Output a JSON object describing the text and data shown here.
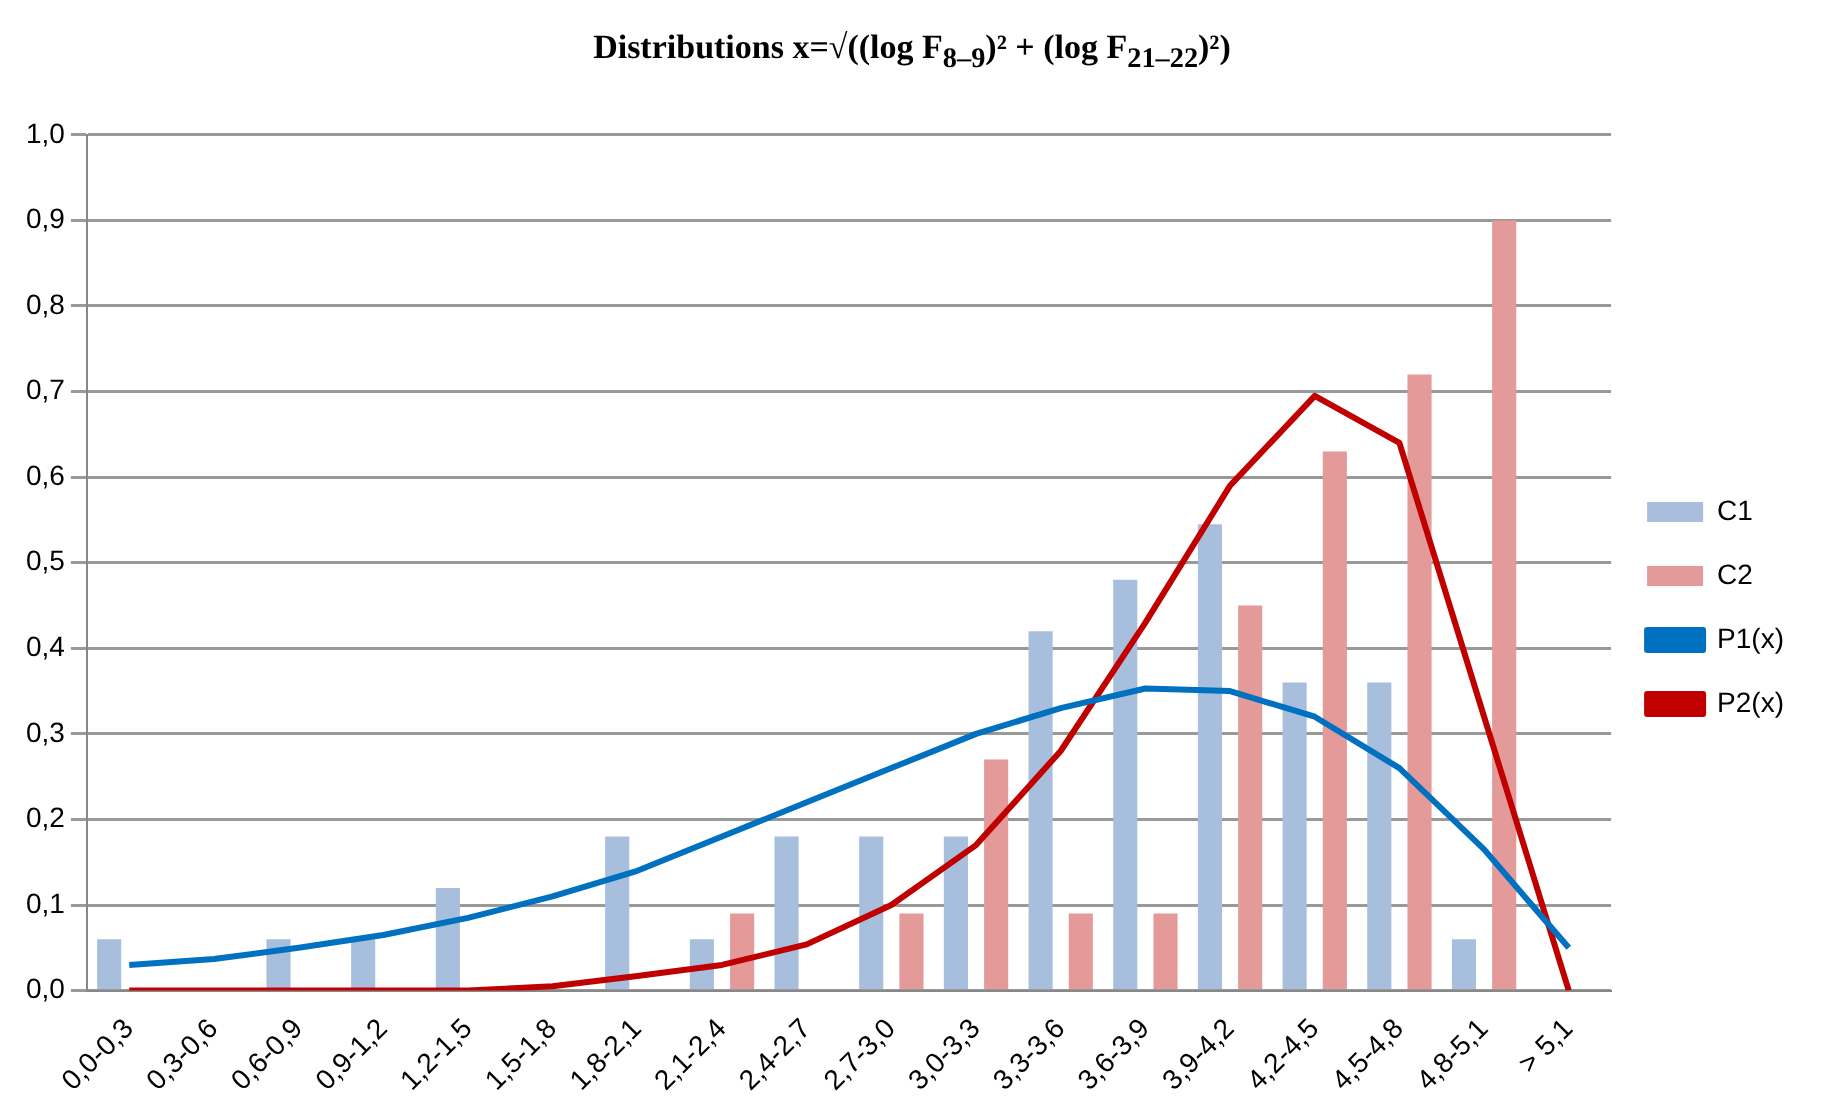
{
  "chart_data": {
    "type": "bar",
    "title": "Distributions  x=√((log F$_{8–9}$)² + (log F$_{21–22}$)²)",
    "categories": [
      "0,0-0,3",
      "0,3-0,6",
      "0,6-0,9",
      "0,9-1,2",
      "1,2-1,5",
      "1,5-1,8",
      "1,8-2,1",
      "2,1-2,4",
      "2,4-2,7",
      "2,7-3,0",
      "3,0-3,3",
      "3,3-3,6",
      "3,6-3,9",
      "3,9-4,2",
      "4,2-4,5",
      "4,5-4,8",
      "4,8-5,1",
      "> 5,1"
    ],
    "series": [
      {
        "name": "C1",
        "color": "#a7bfdd",
        "values": [
          0.06,
          0,
          0.06,
          0.06,
          0.12,
          0,
          0.18,
          0.06,
          0.18,
          0.18,
          0.18,
          0.42,
          0.48,
          0.545,
          0.36,
          0.36,
          0.06,
          0
        ]
      },
      {
        "name": "C2",
        "color": "#e59a9a",
        "values": [
          0,
          0,
          0,
          0,
          0,
          0,
          0,
          0.09,
          0,
          0.09,
          0.27,
          0.09,
          0.09,
          0.45,
          0.63,
          0.72,
          0.9,
          0
        ]
      },
      {
        "name": "P1(x)",
        "type": "line",
        "color": "#0070c0",
        "values": [
          0.03,
          0.037,
          0.05,
          0.065,
          0.085,
          0.11,
          0.14,
          0.18,
          0.22,
          0.26,
          0.3,
          0.33,
          0.353,
          0.35,
          0.32,
          0.26,
          0.165,
          0.05
        ]
      },
      {
        "name": "P2(x)",
        "type": "line",
        "color": "#c00000",
        "values": [
          0,
          0,
          0,
          0,
          0,
          0.005,
          0.017,
          0.03,
          0.054,
          0.1,
          0.17,
          0.28,
          0.43,
          0.59,
          0.695,
          0.64,
          0.32,
          0
        ]
      }
    ],
    "ylim": [
      0,
      1
    ],
    "yticks": [
      {
        "value": 0,
        "label": "0,0"
      },
      {
        "value": 0.1,
        "label": "0,1"
      },
      {
        "value": 0.2,
        "label": "0,2"
      },
      {
        "value": 0.3,
        "label": "0,3"
      },
      {
        "value": 0.4,
        "label": "0,4"
      },
      {
        "value": 0.5,
        "label": "0,5"
      },
      {
        "value": 0.6,
        "label": "0,6"
      },
      {
        "value": 0.7,
        "label": "0,7"
      },
      {
        "value": 0.8,
        "label": "0,8"
      },
      {
        "value": 0.9,
        "label": "0,9"
      },
      {
        "value": 1,
        "label": "1,0"
      }
    ],
    "grid": "y",
    "legend": "right",
    "marker": "none"
  }
}
